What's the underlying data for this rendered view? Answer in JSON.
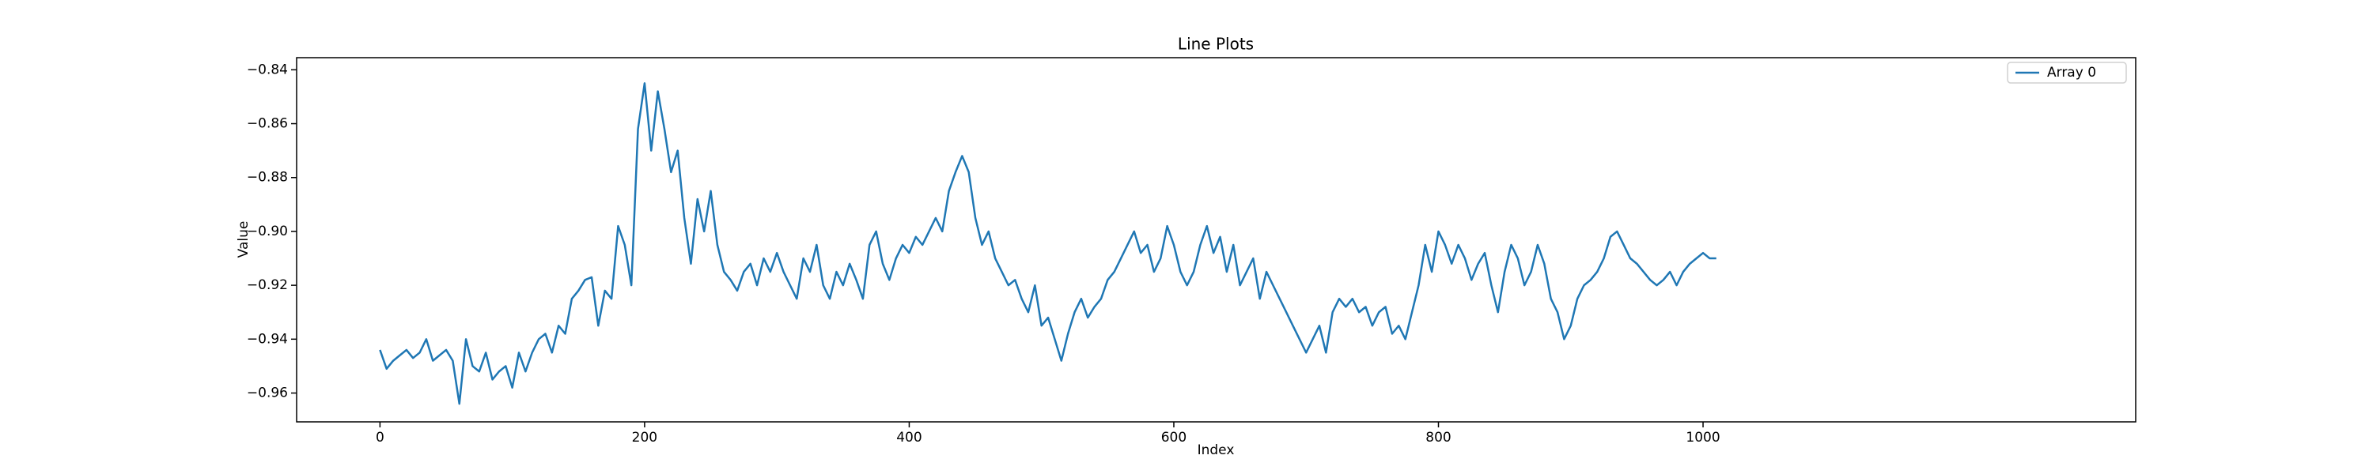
{
  "chart_data": {
    "type": "line",
    "title": "Line Plots",
    "x_label": "Index",
    "y_label": "Value",
    "x": [
      0,
      5,
      10,
      15,
      20,
      25,
      30,
      35,
      40,
      45,
      50,
      55,
      60,
      65,
      70,
      75,
      80,
      85,
      90,
      95,
      100,
      105,
      110,
      115,
      120,
      125,
      130,
      135,
      140,
      145,
      150,
      155,
      160,
      165,
      170,
      175,
      180,
      185,
      190,
      195,
      200,
      205,
      210,
      215,
      220,
      225,
      230,
      235,
      240,
      245,
      250,
      255,
      260,
      265,
      270,
      275,
      280,
      285,
      290,
      295,
      300,
      305,
      310,
      315,
      320,
      325,
      330,
      335,
      340,
      345,
      350,
      355,
      360,
      365,
      370,
      375,
      380,
      385,
      390,
      395,
      400,
      405,
      410,
      415,
      420,
      425,
      430,
      435,
      440,
      445,
      450,
      455,
      460,
      465,
      470,
      475,
      480,
      485,
      490,
      495,
      500,
      505,
      510,
      515,
      520,
      525,
      530,
      535,
      540,
      545,
      550,
      555,
      560,
      565,
      570,
      575,
      580,
      585,
      590,
      595,
      600,
      605,
      610,
      615,
      620,
      625,
      630,
      635,
      640,
      645,
      650,
      655,
      660,
      665,
      670,
      675,
      680,
      685,
      690,
      695,
      700,
      705,
      710,
      715,
      720,
      725,
      730,
      735,
      740,
      745,
      750,
      755,
      760,
      765,
      770,
      775,
      780,
      785,
      790,
      795,
      800,
      805,
      810,
      815,
      820,
      825,
      830,
      835,
      840,
      845,
      850,
      855,
      860,
      865,
      870,
      875,
      880,
      885,
      890,
      895,
      900,
      905,
      910,
      915,
      920,
      925,
      930,
      935,
      940,
      945,
      950,
      955,
      960,
      965,
      970,
      975,
      980,
      985,
      990,
      995,
      1000,
      1005,
      1010
    ],
    "series": [
      {
        "name": "Array 0",
        "color": "#1f77b4",
        "values": [
          -0.944,
          -0.951,
          -0.948,
          -0.946,
          -0.944,
          -0.947,
          -0.945,
          -0.94,
          -0.948,
          -0.946,
          -0.944,
          -0.948,
          -0.964,
          -0.94,
          -0.95,
          -0.952,
          -0.945,
          -0.955,
          -0.952,
          -0.95,
          -0.958,
          -0.945,
          -0.952,
          -0.945,
          -0.94,
          -0.938,
          -0.945,
          -0.935,
          -0.938,
          -0.925,
          -0.922,
          -0.918,
          -0.917,
          -0.935,
          -0.922,
          -0.925,
          -0.898,
          -0.905,
          -0.92,
          -0.862,
          -0.845,
          -0.87,
          -0.848,
          -0.862,
          -0.878,
          -0.87,
          -0.895,
          -0.912,
          -0.888,
          -0.9,
          -0.885,
          -0.905,
          -0.915,
          -0.918,
          -0.922,
          -0.915,
          -0.912,
          -0.92,
          -0.91,
          -0.915,
          -0.908,
          -0.915,
          -0.92,
          -0.925,
          -0.91,
          -0.915,
          -0.905,
          -0.92,
          -0.925,
          -0.915,
          -0.92,
          -0.912,
          -0.918,
          -0.925,
          -0.905,
          -0.9,
          -0.912,
          -0.918,
          -0.91,
          -0.905,
          -0.908,
          -0.902,
          -0.905,
          -0.9,
          -0.895,
          -0.9,
          -0.885,
          -0.878,
          -0.872,
          -0.878,
          -0.895,
          -0.905,
          -0.9,
          -0.91,
          -0.915,
          -0.92,
          -0.918,
          -0.925,
          -0.93,
          -0.92,
          -0.935,
          -0.932,
          -0.94,
          -0.948,
          -0.938,
          -0.93,
          -0.925,
          -0.932,
          -0.928,
          -0.925,
          -0.918,
          -0.915,
          -0.91,
          -0.905,
          -0.9,
          -0.908,
          -0.905,
          -0.915,
          -0.91,
          -0.898,
          -0.905,
          -0.915,
          -0.92,
          -0.915,
          -0.905,
          -0.898,
          -0.908,
          -0.902,
          -0.915,
          -0.905,
          -0.92,
          -0.915,
          -0.91,
          -0.925,
          -0.915,
          -0.92,
          -0.925,
          -0.93,
          -0.935,
          -0.94,
          -0.945,
          -0.94,
          -0.935,
          -0.945,
          -0.93,
          -0.925,
          -0.928,
          -0.925,
          -0.93,
          -0.928,
          -0.935,
          -0.93,
          -0.928,
          -0.938,
          -0.935,
          -0.94,
          -0.93,
          -0.92,
          -0.905,
          -0.915,
          -0.9,
          -0.905,
          -0.912,
          -0.905,
          -0.91,
          -0.918,
          -0.912,
          -0.908,
          -0.92,
          -0.93,
          -0.915,
          -0.905,
          -0.91,
          -0.92,
          -0.915,
          -0.905,
          -0.912,
          -0.925,
          -0.93,
          -0.94,
          -0.935,
          -0.925,
          -0.92,
          -0.918,
          -0.915,
          -0.91,
          -0.902,
          -0.9,
          -0.905,
          -0.91,
          -0.912,
          -0.915,
          -0.918,
          -0.92,
          -0.918,
          -0.915,
          -0.92,
          -0.915,
          -0.912,
          -0.91,
          -0.908,
          -0.91,
          -0.91
        ]
      }
    ],
    "xlim": [
      -63,
      1327
    ],
    "ylim": [
      -0.9707,
      -0.8355
    ],
    "xticks": [
      0,
      200,
      400,
      600,
      800,
      1000
    ],
    "yticks": [
      {
        "value": -0.96,
        "label": "−0.96"
      },
      {
        "value": -0.94,
        "label": "−0.94"
      },
      {
        "value": -0.92,
        "label": "−0.92"
      },
      {
        "value": -0.9,
        "label": "−0.90"
      },
      {
        "value": -0.88,
        "label": "−0.88"
      },
      {
        "value": -0.86,
        "label": "−0.86"
      },
      {
        "value": -0.84,
        "label": "−0.84"
      }
    ],
    "grid": false,
    "legend": "upper right"
  }
}
